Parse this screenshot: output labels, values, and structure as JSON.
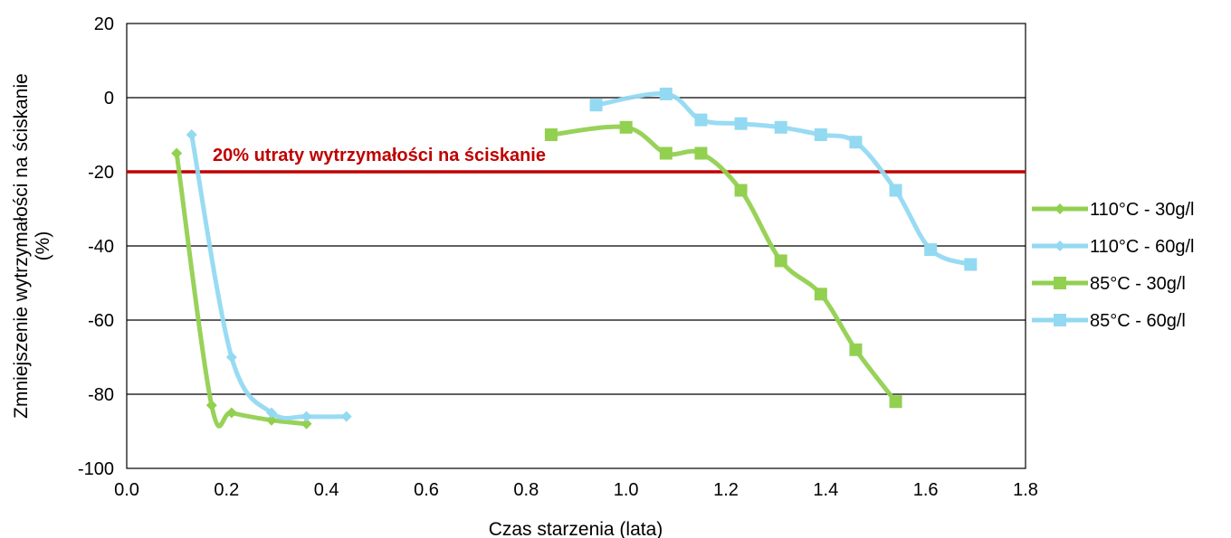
{
  "chart_data": {
    "type": "line",
    "title": "",
    "xlabel": "Czas starzenia (lata)",
    "ylabel": "Zmniejszenie wytrzymałości na ściskanie (%)",
    "ylabel_lines": [
      "Zmniejszenie wytrzymałości na ściskanie",
      "(%)"
    ],
    "xlim": [
      0.0,
      1.8
    ],
    "ylim": [
      -100,
      20
    ],
    "x_ticks": [
      "0.0",
      "0.2",
      "0.4",
      "0.6",
      "0.8",
      "1.0",
      "1.2",
      "1.4",
      "1.6",
      "1.8"
    ],
    "y_ticks": [
      "20",
      "0",
      "-20",
      "-40",
      "-60",
      "-80",
      "-100"
    ],
    "grid": "horizontal",
    "legend_position": "right",
    "series": [
      {
        "name": "110°C - 30g/l",
        "color": "#92d050",
        "marker": "diamond",
        "points": [
          [
            0.1,
            -15
          ],
          [
            0.17,
            -83
          ],
          [
            0.21,
            -85
          ],
          [
            0.29,
            -87
          ],
          [
            0.36,
            -88
          ]
        ]
      },
      {
        "name": "110°C - 60g/l",
        "color": "#93d9f2",
        "marker": "diamond",
        "points": [
          [
            0.13,
            -10
          ],
          [
            0.21,
            -70
          ],
          [
            0.29,
            -85
          ],
          [
            0.36,
            -86
          ],
          [
            0.44,
            -86
          ]
        ]
      },
      {
        "name": "85°C - 30g/l",
        "color": "#92d050",
        "marker": "square",
        "points": [
          [
            0.85,
            -10
          ],
          [
            1.0,
            -8
          ],
          [
            1.08,
            -15
          ],
          [
            1.15,
            -15
          ],
          [
            1.23,
            -25
          ],
          [
            1.31,
            -44
          ],
          [
            1.39,
            -53
          ],
          [
            1.46,
            -68
          ],
          [
            1.54,
            -82
          ]
        ]
      },
      {
        "name": "85°C - 60g/l",
        "color": "#93d9f2",
        "marker": "square",
        "points": [
          [
            0.94,
            -2
          ],
          [
            1.08,
            1
          ],
          [
            1.15,
            -6
          ],
          [
            1.23,
            -7
          ],
          [
            1.31,
            -8
          ],
          [
            1.39,
            -10
          ],
          [
            1.46,
            -12
          ],
          [
            1.54,
            -25
          ],
          [
            1.61,
            -41
          ],
          [
            1.69,
            -45
          ]
        ]
      }
    ],
    "reference_line": {
      "y": -20,
      "color": "#c00000",
      "label": "20% utraty wytrzymałości na ściskanie"
    }
  }
}
